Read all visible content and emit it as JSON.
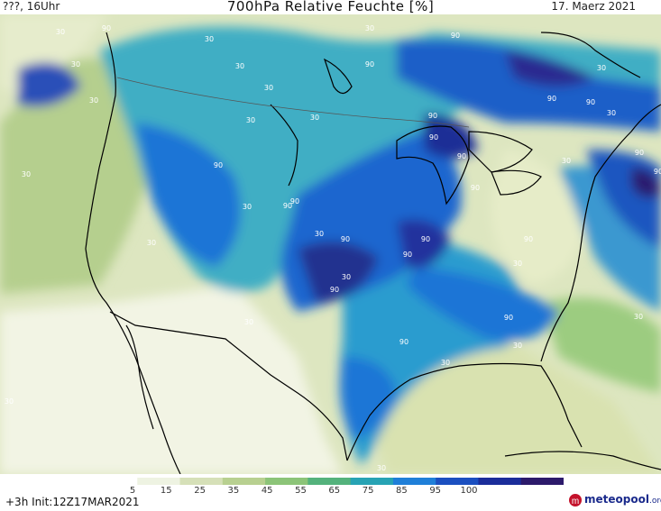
{
  "header": {
    "left": "???, 16Uhr",
    "title": "700hPa Relative Feuchte [%]",
    "date": "17. Maerz 2021"
  },
  "footer": {
    "init": "+3h  Init:12Z17MAR2021",
    "brand_main": "meteopool",
    "brand_suffix": ".org"
  },
  "colorbar": {
    "ticks": [
      "5",
      "15",
      "25",
      "35",
      "45",
      "55",
      "65",
      "75",
      "85",
      "95",
      "100"
    ],
    "colors": [
      "#ffffff",
      "#eef3e2",
      "#d6e0b8",
      "#b8d090",
      "#8cc478",
      "#54b27c",
      "#27a3b4",
      "#1f7fd8",
      "#1b4fc0",
      "#1b2d9a",
      "#2c1a6b"
    ]
  },
  "map": {
    "contour_labels": [
      "30",
      "30",
      "30",
      "30",
      "30",
      "30",
      "30",
      "30",
      "30",
      "30",
      "30",
      "30",
      "30",
      "30",
      "30",
      "30",
      "30",
      "30",
      "30",
      "30",
      "30",
      "30",
      "30",
      "30",
      "90",
      "90",
      "90",
      "90",
      "90",
      "90",
      "90",
      "90",
      "90",
      "90",
      "90",
      "90",
      "90",
      "90",
      "90",
      "90",
      "90",
      "90",
      "90",
      "90",
      "90"
    ]
  }
}
